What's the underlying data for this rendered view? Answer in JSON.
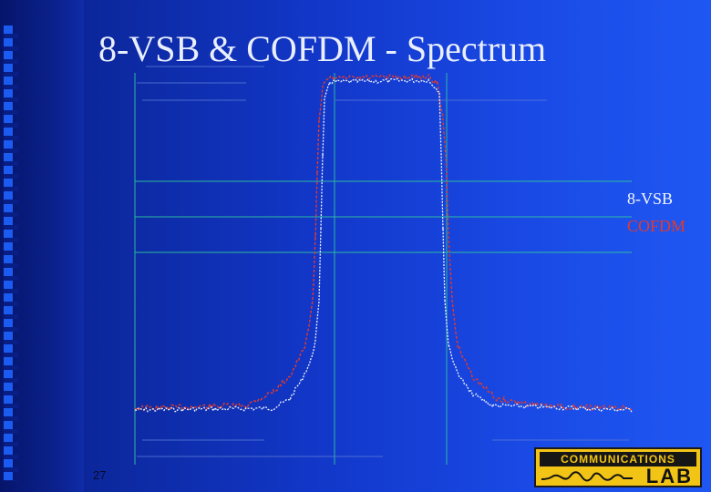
{
  "slide": {
    "title": "8-VSB & COFDM - Spectrum",
    "page_number": "27"
  },
  "legend": {
    "vsb_label": "8-VSB",
    "cofdm_label": "COFDM",
    "vsb_color": "#ffffff",
    "cofdm_color": "#e33a2c"
  },
  "logo": {
    "top_text": "COMMUNICATIONS",
    "bottom_text": "LAB",
    "background_color": "#f2c416"
  },
  "chart_data": {
    "type": "line",
    "title": "",
    "xlabel": "",
    "ylabel": "",
    "grid": true,
    "legend_position": "right",
    "series": [
      {
        "name": "8-VSB",
        "color": "#ffffff"
      },
      {
        "name": "COFDM",
        "color": "#e33a2c"
      }
    ]
  }
}
